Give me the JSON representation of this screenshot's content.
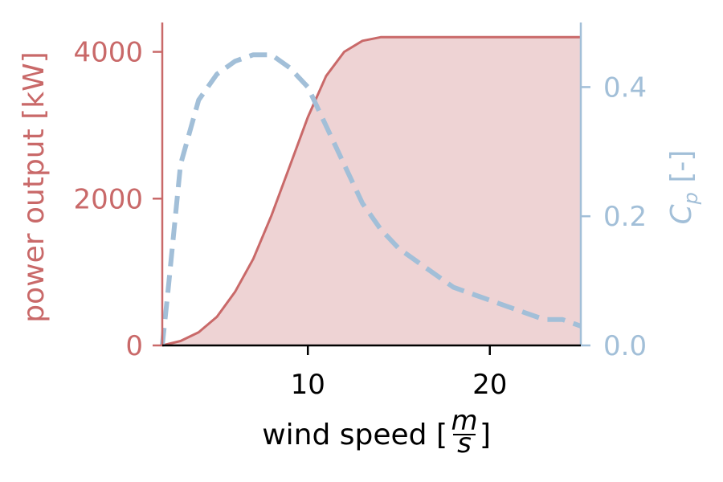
{
  "chart_data": {
    "type": "area",
    "xlabel": "wind speed [",
    "xlabel_unit_num": "m",
    "xlabel_unit_den": "s",
    "xlabel_close": "]",
    "xlim": [
      2,
      25
    ],
    "xticks": [
      10,
      20
    ],
    "xtick_labels": [
      "10",
      "20"
    ],
    "left_axis": {
      "label": "power output [kW]",
      "ylim": [
        0,
        4400
      ],
      "ticks": [
        0,
        2000,
        4000
      ],
      "tick_labels": [
        "0",
        "2000",
        "4000"
      ],
      "color": "#c96969"
    },
    "right_axis": {
      "label": "C",
      "label_subscript": "p",
      "label_suffix": " [-]",
      "ylim": [
        0,
        0.5
      ],
      "ticks": [
        0.0,
        0.2,
        0.4
      ],
      "tick_labels": [
        "0.0",
        "0.2",
        "0.4"
      ],
      "color": "#a2bfd8"
    },
    "series": [
      {
        "axis": "left",
        "style": "solid-filled",
        "color": "#c96969",
        "fill": "#eed3d4",
        "x": [
          2,
          3,
          4,
          5,
          6,
          7,
          8,
          9,
          10,
          11,
          12,
          13,
          14,
          15,
          16,
          17,
          18,
          19,
          20,
          21,
          22,
          23,
          24,
          25
        ],
        "values": [
          0,
          60,
          180,
          390,
          730,
          1180,
          1770,
          2440,
          3110,
          3670,
          4000,
          4150,
          4200,
          4200,
          4200,
          4200,
          4200,
          4200,
          4200,
          4200,
          4200,
          4200,
          4200,
          4200
        ]
      },
      {
        "axis": "right",
        "style": "dashed",
        "color": "#a2bfd8",
        "x": [
          2,
          2.3,
          3,
          4,
          5,
          6,
          7,
          7.5,
          8,
          9,
          10,
          11,
          12,
          13,
          14,
          15,
          16,
          17,
          18,
          19,
          20,
          21,
          22,
          23,
          24,
          25
        ],
        "values": [
          0,
          0.08,
          0.28,
          0.38,
          0.42,
          0.44,
          0.45,
          0.45,
          0.45,
          0.43,
          0.4,
          0.34,
          0.28,
          0.22,
          0.18,
          0.15,
          0.13,
          0.11,
          0.09,
          0.08,
          0.07,
          0.06,
          0.05,
          0.04,
          0.04,
          0.03
        ]
      }
    ]
  }
}
